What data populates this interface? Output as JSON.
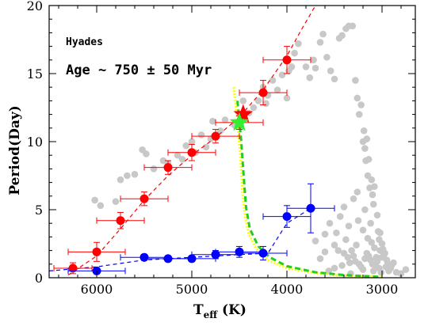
{
  "chart_data": {
    "type": "scatter",
    "title": "",
    "xlabel_main": "T",
    "xlabel_sub": "eff",
    "xlabel_unit": " (K)",
    "ylabel": "Period(Day)",
    "xlim": [
      6500,
      2650
    ],
    "ylim": [
      0,
      20
    ],
    "x_ticks": [
      6000,
      5000,
      4000,
      3000
    ],
    "y_ticks": [
      0,
      5,
      10,
      15,
      20
    ],
    "annotations": [
      "Hyades",
      "Age ~ 750 ± 50 Myr"
    ],
    "grid": false,
    "legend": "none",
    "series": [
      {
        "kind": "points",
        "color": "#c8c8c8",
        "points": [
          [
            6020,
            5.7
          ],
          [
            5960,
            5.3
          ],
          [
            5800,
            5.6
          ],
          [
            5750,
            7.2
          ],
          [
            5680,
            7.5
          ],
          [
            5600,
            7.6
          ],
          [
            5520,
            9.4
          ],
          [
            5480,
            9.1
          ],
          [
            5400,
            8.0
          ],
          [
            5300,
            8.6
          ],
          [
            5250,
            8.4
          ],
          [
            5150,
            9.0
          ],
          [
            5100,
            8.7
          ],
          [
            5060,
            9.7
          ],
          [
            5000,
            10.0
          ],
          [
            4960,
            9.2
          ],
          [
            4900,
            10.5
          ],
          [
            4850,
            9.6
          ],
          [
            4800,
            10.2
          ],
          [
            4780,
            11.5
          ],
          [
            4700,
            10.8
          ],
          [
            4650,
            11.6
          ],
          [
            4550,
            11.2
          ],
          [
            4500,
            12.0
          ],
          [
            4460,
            13.0
          ],
          [
            4400,
            12.1
          ],
          [
            4350,
            12.5
          ],
          [
            4300,
            13.0
          ],
          [
            4250,
            14.0
          ],
          [
            4220,
            12.8
          ],
          [
            4200,
            13.4
          ],
          [
            4150,
            14.5
          ],
          [
            4100,
            13.8
          ],
          [
            4050,
            14.9
          ],
          [
            4000,
            13.2
          ],
          [
            3980,
            15.2
          ],
          [
            3950,
            15.5
          ],
          [
            3920,
            16.5
          ],
          [
            3880,
            17.2
          ],
          [
            3800,
            15.5
          ],
          [
            3760,
            14.7
          ],
          [
            3720,
            16.0
          ],
          [
            3700,
            15.4
          ],
          [
            3650,
            17.3
          ],
          [
            3620,
            17.9
          ],
          [
            3580,
            16.2
          ],
          [
            3540,
            15.2
          ],
          [
            3500,
            14.6
          ],
          [
            3450,
            17.6
          ],
          [
            3420,
            17.8
          ],
          [
            3380,
            18.3
          ],
          [
            3350,
            18.5
          ],
          [
            3310,
            18.5
          ],
          [
            3280,
            14.5
          ],
          [
            3260,
            13.2
          ],
          [
            3240,
            12.0
          ],
          [
            3220,
            12.7
          ],
          [
            3200,
            10.0
          ],
          [
            3190,
            10.8
          ],
          [
            3180,
            9.5
          ],
          [
            3170,
            8.6
          ],
          [
            3160,
            10.2
          ],
          [
            3150,
            7.5
          ],
          [
            3140,
            8.7
          ],
          [
            3130,
            6.6
          ],
          [
            3110,
            7.2
          ],
          [
            3100,
            6.1
          ],
          [
            3090,
            5.4
          ],
          [
            3080,
            6.7
          ],
          [
            3050,
            4.6
          ],
          [
            3040,
            3.4
          ],
          [
            3030,
            2.8
          ],
          [
            3020,
            3.3
          ],
          [
            3000,
            2.5
          ],
          [
            2990,
            2.1
          ],
          [
            2970,
            1.8
          ],
          [
            2960,
            0.8
          ],
          [
            2950,
            1.3
          ],
          [
            2940,
            1.0
          ],
          [
            2930,
            0.5
          ],
          [
            2910,
            0.7
          ],
          [
            2880,
            1.1
          ],
          [
            2850,
            0.4
          ],
          [
            2800,
            0.3
          ],
          [
            2750,
            0.6
          ],
          [
            3260,
            6.3
          ],
          [
            3300,
            5.8
          ],
          [
            3250,
            4.2
          ],
          [
            3200,
            3.5
          ],
          [
            3150,
            2.9
          ],
          [
            3110,
            2.6
          ],
          [
            3080,
            2.2
          ],
          [
            3060,
            1.5
          ],
          [
            3320,
            2.0
          ],
          [
            3300,
            1.6
          ],
          [
            3280,
            1.2
          ],
          [
            3240,
            1.0
          ],
          [
            3220,
            0.8
          ],
          [
            3200,
            0.6
          ],
          [
            3180,
            1.4
          ],
          [
            3160,
            1.8
          ],
          [
            3140,
            1.6
          ],
          [
            3120,
            1.3
          ],
          [
            3100,
            1.0
          ],
          [
            3090,
            0.5
          ],
          [
            3070,
            0.9
          ],
          [
            3050,
            1.2
          ],
          [
            3030,
            0.7
          ],
          [
            3010,
            0.4
          ],
          [
            3000,
            1.5
          ],
          [
            3400,
            5.2
          ],
          [
            3440,
            4.5
          ],
          [
            3480,
            3.3
          ],
          [
            3500,
            2.4
          ],
          [
            3460,
            2.0
          ],
          [
            3400,
            1.8
          ],
          [
            3360,
            1.5
          ],
          [
            3340,
            1.1
          ],
          [
            3420,
            0.9
          ],
          [
            3500,
            0.7
          ],
          [
            3600,
            1.9
          ],
          [
            3650,
            1.4
          ],
          [
            3560,
            0.5
          ],
          [
            3380,
            2.8
          ],
          [
            3330,
            0.3
          ],
          [
            3270,
            2.4
          ],
          [
            3550,
            4.0
          ],
          [
            3700,
            2.7
          ],
          [
            3600,
            3.2
          ],
          [
            3350,
            3.8
          ],
          [
            3180,
            5.0
          ],
          [
            3120,
            4.0
          ],
          [
            3020,
            2.0
          ],
          [
            2980,
            1.7
          ],
          [
            2900,
            0.9
          ]
        ]
      },
      {
        "kind": "errorbars",
        "color": "#ff0000",
        "points": [
          [
            6250,
            0.7,
            200,
            0.4
          ],
          [
            6000,
            1.9,
            300,
            0.7
          ],
          [
            5750,
            4.2,
            250,
            0.6
          ],
          [
            5500,
            5.8,
            250,
            0.5
          ],
          [
            5250,
            8.1,
            250,
            0.5
          ],
          [
            5000,
            9.2,
            250,
            0.6
          ],
          [
            4750,
            10.4,
            250,
            0.5
          ],
          [
            4500,
            11.4,
            250,
            0.5
          ],
          [
            4250,
            13.6,
            250,
            0.9
          ],
          [
            4000,
            16.0,
            250,
            1.0
          ]
        ]
      },
      {
        "kind": "errorbars",
        "color": "#0000ff",
        "points": [
          [
            6000,
            0.5,
            300,
            0.2
          ],
          [
            5500,
            1.5,
            250,
            0.2
          ],
          [
            5250,
            1.4,
            250,
            0.2
          ],
          [
            5000,
            1.4,
            250,
            0.2
          ],
          [
            4750,
            1.7,
            250,
            0.3
          ],
          [
            4500,
            1.9,
            250,
            0.4
          ],
          [
            4250,
            1.8,
            250,
            0.5
          ],
          [
            4000,
            4.5,
            250,
            0.8
          ],
          [
            3750,
            5.1,
            250,
            1.8
          ]
        ]
      },
      {
        "kind": "dashed-line",
        "color": "#ff0000",
        "points": [
          [
            6300,
            0.2
          ],
          [
            6000,
            1.6
          ],
          [
            5750,
            3.6
          ],
          [
            5500,
            5.7
          ],
          [
            5250,
            7.5
          ],
          [
            5000,
            9.0
          ],
          [
            4750,
            10.3
          ],
          [
            4500,
            11.8
          ],
          [
            4250,
            13.8
          ],
          [
            4000,
            16.3
          ],
          [
            3850,
            18.2
          ],
          [
            3700,
            20.0
          ]
        ]
      },
      {
        "kind": "dashed-line",
        "color": "#0000ff",
        "points": [
          [
            6500,
            0.5
          ],
          [
            6000,
            0.8
          ],
          [
            5500,
            1.3
          ],
          [
            5000,
            1.5
          ],
          [
            4500,
            1.7
          ],
          [
            4200,
            1.8
          ],
          [
            4000,
            4.0
          ],
          [
            3750,
            5.1
          ]
        ]
      },
      {
        "kind": "dashed-line",
        "color": "#ffff00",
        "points": [
          [
            4560,
            14.0
          ],
          [
            4520,
            11.5
          ],
          [
            4490,
            9.0
          ],
          [
            4470,
            6.5
          ],
          [
            4440,
            4.5
          ],
          [
            4400,
            3.2
          ],
          [
            4320,
            2.1
          ],
          [
            4200,
            1.3
          ],
          [
            4000,
            0.7
          ],
          [
            3700,
            0.35
          ],
          [
            3400,
            0.15
          ],
          [
            3000,
            0.05
          ]
        ]
      },
      {
        "kind": "dashed-line",
        "color": "#22cc22",
        "points": [
          [
            4520,
            13.0
          ],
          [
            4480,
            10.0
          ],
          [
            4455,
            7.5
          ],
          [
            4430,
            5.2
          ],
          [
            4390,
            3.6
          ],
          [
            4300,
            2.3
          ],
          [
            4180,
            1.5
          ],
          [
            4000,
            0.85
          ],
          [
            3700,
            0.4
          ],
          [
            3400,
            0.2
          ],
          [
            3000,
            0.05
          ]
        ]
      },
      {
        "kind": "star",
        "color": "#ff0000",
        "points": [
          [
            4460,
            12.0
          ]
        ]
      },
      {
        "kind": "star",
        "color": "#33ee33",
        "points": [
          [
            4500,
            11.4
          ]
        ]
      }
    ]
  }
}
